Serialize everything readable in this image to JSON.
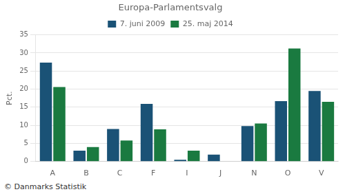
{
  "chart_data": {
    "type": "bar",
    "title": "Europa-Parlamentsvalg",
    "y_label": "Pct.",
    "categories": [
      "A",
      "B",
      "C",
      "F",
      "I",
      "J",
      "N",
      "O",
      "V"
    ],
    "series": [
      {
        "name": "7. juni 2009",
        "color": "#1a5276",
        "values": [
          27.3,
          3.0,
          9.0,
          15.9,
          0.5,
          1.9,
          9.8,
          16.7,
          19.5
        ]
      },
      {
        "name": "25. maj 2014",
        "color": "#1a7a40",
        "values": [
          20.6,
          4.0,
          5.8,
          8.9,
          3.0,
          0.0,
          10.5,
          31.2,
          16.5
        ]
      }
    ],
    "ylim": [
      0,
      35
    ],
    "yticks": [
      0,
      5,
      10,
      15,
      20,
      25,
      30,
      35
    ],
    "grid": "y",
    "legend": "top",
    "annotations": [
      "© Danmarks Statistik"
    ]
  }
}
